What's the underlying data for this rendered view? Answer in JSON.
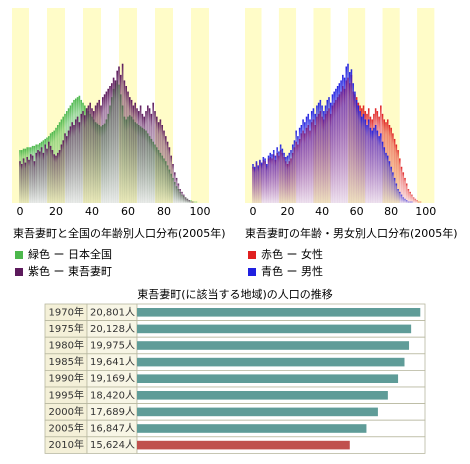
{
  "chart_data": [
    {
      "type": "bar",
      "overlay": true,
      "title": "東吾妻町と全国の年齢別人口分布(2005年)",
      "xlim": [
        0,
        110
      ],
      "xticks": [
        0,
        20,
        40,
        60,
        80,
        100
      ],
      "ylim": [
        0,
        140
      ],
      "series": [
        {
          "name": "緑色 ー 日本全国",
          "color": "#4cb84c",
          "values": [
            38,
            38,
            39,
            39,
            40,
            40,
            40,
            41,
            41,
            42,
            42,
            43,
            44,
            45,
            46,
            47,
            48,
            50,
            51,
            52,
            54,
            56,
            58,
            60,
            62,
            64,
            66,
            68,
            70,
            72,
            74,
            75,
            76,
            77,
            74,
            72,
            70,
            68,
            66,
            64,
            62,
            60,
            58,
            57,
            56,
            55,
            56,
            57,
            60,
            64,
            70,
            76,
            82,
            86,
            88,
            85,
            78,
            70,
            62,
            60,
            62,
            63,
            62,
            60,
            58,
            57,
            56,
            55,
            54,
            53,
            52,
            50,
            48,
            46,
            44,
            42,
            40,
            38,
            36,
            34,
            32,
            30,
            27,
            24,
            21,
            18,
            15,
            12,
            10,
            8,
            6,
            5,
            4,
            3,
            2,
            2,
            1,
            1,
            1,
            0,
            0
          ]
        },
        {
          "name": "紫色 ー 東吾妻町",
          "color": "#5c1a5c",
          "values": [
            30,
            28,
            32,
            29,
            33,
            31,
            35,
            34,
            30,
            36,
            38,
            37,
            40,
            36,
            42,
            39,
            44,
            41,
            38,
            35,
            34,
            36,
            38,
            42,
            45,
            50,
            48,
            52,
            55,
            58,
            56,
            60,
            62,
            58,
            64,
            66,
            63,
            68,
            70,
            72,
            68,
            66,
            70,
            72,
            74,
            70,
            76,
            78,
            80,
            82,
            84,
            86,
            90,
            88,
            95,
            98,
            92,
            100,
            88,
            84,
            80,
            76,
            74,
            70,
            72,
            68,
            66,
            70,
            64,
            62,
            66,
            70,
            68,
            64,
            72,
            66,
            62,
            58,
            60,
            56,
            52,
            48,
            44,
            40,
            34,
            28,
            22,
            18,
            14,
            10,
            8,
            6,
            4,
            3,
            2,
            1,
            1,
            0,
            0,
            0,
            0
          ]
        }
      ]
    },
    {
      "type": "bar",
      "overlay": true,
      "title": "東吾妻町の年齢・男女別人口分布(2005年)",
      "xlim": [
        0,
        110
      ],
      "xticks": [
        0,
        20,
        40,
        60,
        80,
        100
      ],
      "ylim": [
        0,
        140
      ],
      "series": [
        {
          "name": "赤色 ー 女性",
          "color": "#e02020",
          "values": [
            26,
            25,
            29,
            26,
            30,
            28,
            31,
            30,
            27,
            32,
            33,
            32,
            35,
            31,
            36,
            34,
            38,
            36,
            33,
            30,
            28,
            30,
            32,
            36,
            40,
            44,
            42,
            46,
            50,
            52,
            50,
            54,
            56,
            52,
            58,
            60,
            56,
            62,
            64,
            66,
            62,
            60,
            64,
            66,
            68,
            64,
            70,
            72,
            74,
            76,
            78,
            80,
            84,
            82,
            88,
            90,
            86,
            92,
            80,
            78,
            76,
            72,
            70,
            68,
            70,
            66,
            64,
            68,
            62,
            60,
            64,
            68,
            66,
            62,
            70,
            64,
            60,
            58,
            60,
            56,
            54,
            50,
            46,
            42,
            38,
            32,
            26,
            22,
            18,
            14,
            10,
            8,
            6,
            4,
            3,
            2,
            1,
            1,
            0,
            0,
            0
          ]
        },
        {
          "name": "青色 ー 男性",
          "color": "#2020e0",
          "values": [
            28,
            26,
            30,
            27,
            31,
            29,
            33,
            32,
            28,
            34,
            36,
            35,
            38,
            34,
            40,
            37,
            42,
            39,
            36,
            33,
            34,
            36,
            38,
            42,
            45,
            52,
            48,
            54,
            56,
            60,
            58,
            62,
            64,
            60,
            66,
            68,
            64,
            70,
            72,
            74,
            70,
            66,
            70,
            74,
            76,
            72,
            78,
            80,
            82,
            84,
            86,
            88,
            92,
            90,
            98,
            100,
            94,
            96,
            86,
            80,
            74,
            70,
            66,
            62,
            64,
            60,
            56,
            60,
            54,
            52,
            54,
            56,
            52,
            48,
            50,
            44,
            40,
            36,
            34,
            30,
            26,
            22,
            18,
            14,
            10,
            8,
            6,
            4,
            3,
            2,
            1,
            1,
            1,
            0,
            0,
            0,
            0,
            0,
            0,
            0,
            0
          ]
        }
      ]
    },
    {
      "type": "hbar",
      "title": "東吾妻町(に該当する地域)の人口の推移",
      "categories": [
        "1970年",
        "1975年",
        "1980年",
        "1985年",
        "1990年",
        "1995年",
        "2000年",
        "2005年",
        "2010年"
      ],
      "values": [
        20801,
        20128,
        19975,
        19641,
        19169,
        18420,
        17689,
        16847,
        15624
      ],
      "value_labels": [
        "20,801人",
        "20,128人",
        "19,975人",
        "19,641人",
        "19,169人",
        "18,420人",
        "17,689人",
        "16,847人",
        "15,624人"
      ],
      "colors": [
        "#5f9c98",
        "#5f9c98",
        "#5f9c98",
        "#5f9c98",
        "#5f9c98",
        "#5f9c98",
        "#5f9c98",
        "#5f9c98",
        "#c0504d"
      ],
      "xlim": [
        0,
        21000
      ]
    }
  ]
}
